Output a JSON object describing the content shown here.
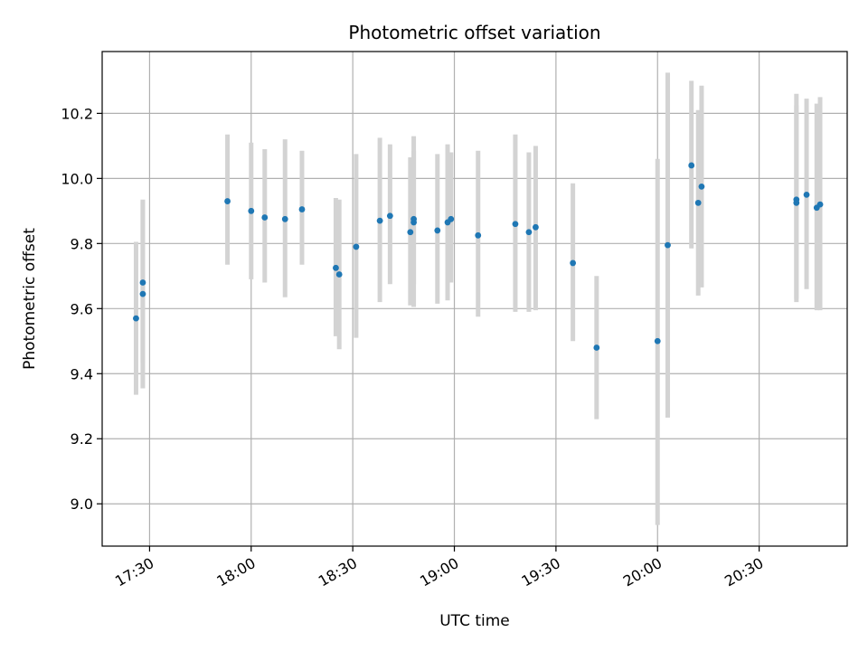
{
  "chart_data": {
    "type": "scatter",
    "title": "Photometric offset variation",
    "xlabel": "UTC time",
    "ylabel": "Photometric offset",
    "x_unit": "HH:MM (UTC)",
    "xlim": [
      "17:16",
      "20:56"
    ],
    "ylim": [
      8.87,
      10.39
    ],
    "x_ticks": [
      "17:30",
      "18:00",
      "18:30",
      "19:00",
      "19:30",
      "20:00",
      "20:30"
    ],
    "y_ticks": [
      9.0,
      9.2,
      9.4,
      9.6,
      9.8,
      10.0,
      10.2
    ],
    "y_tick_labels": [
      "9.0",
      "9.2",
      "9.4",
      "9.6",
      "9.8",
      "10.0",
      "10.2"
    ],
    "grid": true,
    "colors": {
      "marker": "#1f77b4",
      "errorbar": "#d3d3d3",
      "grid": "#b0b0b0"
    },
    "points": [
      {
        "x": "17:26",
        "y": 9.57,
        "lo": 9.335,
        "hi": 9.805
      },
      {
        "x": "17:28",
        "y": 9.645,
        "lo": 9.355,
        "hi": 9.935
      },
      {
        "x": "17:28",
        "y": 9.68,
        "lo": 9.435,
        "hi": 9.93
      },
      {
        "x": "17:53",
        "y": 9.93,
        "lo": 9.735,
        "hi": 10.135
      },
      {
        "x": "18:00",
        "y": 9.9,
        "lo": 9.69,
        "hi": 10.11
      },
      {
        "x": "18:04",
        "y": 9.88,
        "lo": 9.68,
        "hi": 10.09
      },
      {
        "x": "18:10",
        "y": 9.875,
        "lo": 9.635,
        "hi": 10.12
      },
      {
        "x": "18:15",
        "y": 9.905,
        "lo": 9.735,
        "hi": 10.085
      },
      {
        "x": "18:25",
        "y": 9.725,
        "lo": 9.515,
        "hi": 9.94
      },
      {
        "x": "18:26",
        "y": 9.705,
        "lo": 9.475,
        "hi": 9.935
      },
      {
        "x": "18:31",
        "y": 9.79,
        "lo": 9.51,
        "hi": 10.075
      },
      {
        "x": "18:38",
        "y": 9.87,
        "lo": 9.62,
        "hi": 10.125
      },
      {
        "x": "18:41",
        "y": 9.885,
        "lo": 9.675,
        "hi": 10.105
      },
      {
        "x": "18:47",
        "y": 9.835,
        "lo": 9.61,
        "hi": 10.065
      },
      {
        "x": "18:48",
        "y": 9.865,
        "lo": 9.605,
        "hi": 10.13
      },
      {
        "x": "18:48",
        "y": 9.875,
        "lo": 9.675,
        "hi": 10.085
      },
      {
        "x": "18:55",
        "y": 9.84,
        "lo": 9.615,
        "hi": 10.075
      },
      {
        "x": "18:58",
        "y": 9.865,
        "lo": 9.625,
        "hi": 10.105
      },
      {
        "x": "18:59",
        "y": 9.875,
        "lo": 9.68,
        "hi": 10.08
      },
      {
        "x": "19:07",
        "y": 9.825,
        "lo": 9.575,
        "hi": 10.085
      },
      {
        "x": "19:18",
        "y": 9.86,
        "lo": 9.59,
        "hi": 10.135
      },
      {
        "x": "19:22",
        "y": 9.835,
        "lo": 9.59,
        "hi": 10.08
      },
      {
        "x": "19:24",
        "y": 9.85,
        "lo": 9.595,
        "hi": 10.1
      },
      {
        "x": "19:35",
        "y": 9.74,
        "lo": 9.5,
        "hi": 9.985
      },
      {
        "x": "19:42",
        "y": 9.48,
        "lo": 9.26,
        "hi": 9.7
      },
      {
        "x": "20:00",
        "y": 9.5,
        "lo": 8.935,
        "hi": 10.06
      },
      {
        "x": "20:03",
        "y": 9.795,
        "lo": 9.265,
        "hi": 10.325
      },
      {
        "x": "20:10",
        "y": 10.04,
        "lo": 9.785,
        "hi": 10.3
      },
      {
        "x": "20:12",
        "y": 9.925,
        "lo": 9.64,
        "hi": 10.21
      },
      {
        "x": "20:13",
        "y": 9.975,
        "lo": 9.665,
        "hi": 10.285
      },
      {
        "x": "20:41",
        "y": 9.925,
        "lo": 9.63,
        "hi": 10.225
      },
      {
        "x": "20:41",
        "y": 9.935,
        "lo": 9.62,
        "hi": 10.26
      },
      {
        "x": "20:44",
        "y": 9.95,
        "lo": 9.66,
        "hi": 10.245
      },
      {
        "x": "20:47",
        "y": 9.91,
        "lo": 9.595,
        "hi": 10.23
      },
      {
        "x": "20:48",
        "y": 9.92,
        "lo": 9.595,
        "hi": 10.25
      }
    ]
  }
}
